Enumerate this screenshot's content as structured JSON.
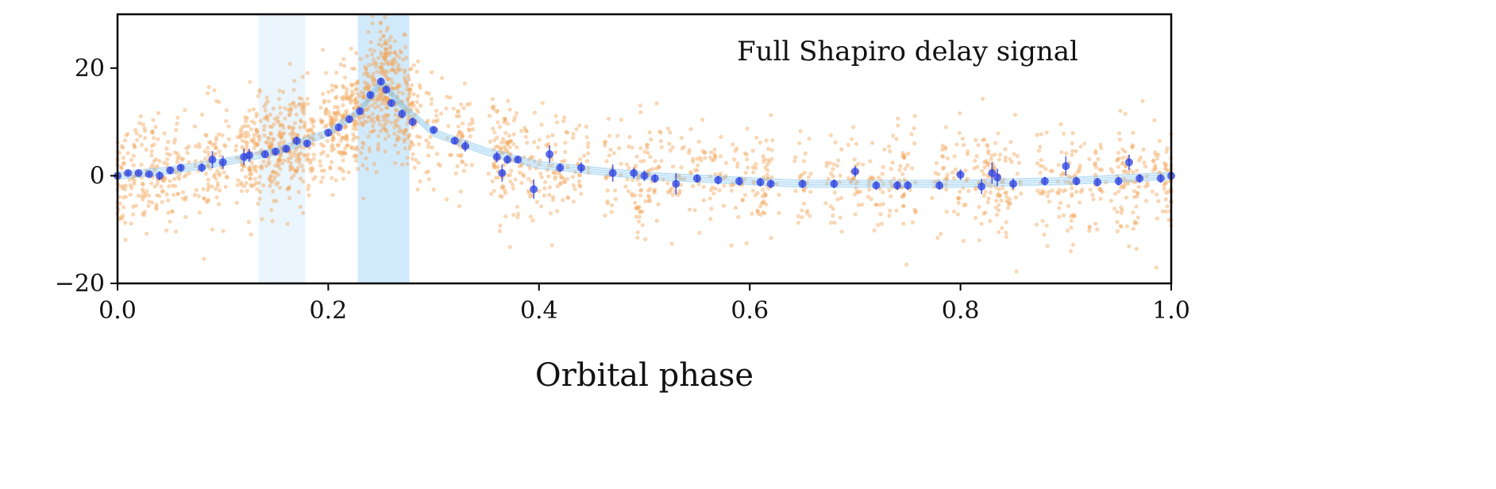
{
  "chart_data": {
    "type": "scatter",
    "xlabel": "Orbital phase",
    "ylabel": "",
    "annotation": "Full Shapiro delay signal",
    "xlim": [
      0.0,
      1.0
    ],
    "ylim": [
      -20,
      30
    ],
    "x_ticks": [
      {
        "value": 0.0,
        "label": "0.0"
      },
      {
        "value": 0.2,
        "label": "0.2"
      },
      {
        "value": 0.4,
        "label": "0.4"
      },
      {
        "value": 0.6,
        "label": "0.6"
      },
      {
        "value": 0.8,
        "label": "0.8"
      },
      {
        "value": 1.0,
        "label": "1.0"
      }
    ],
    "y_ticks": [
      {
        "value": -20,
        "label": "−20"
      },
      {
        "value": 0,
        "label": "0"
      },
      {
        "value": 20,
        "label": "20"
      }
    ],
    "grid": false,
    "legend": "none",
    "shaded_regions": [
      {
        "x0": 0.134,
        "x1": 0.178,
        "color": "#d6ecfb",
        "opacity": 0.5
      },
      {
        "x0": 0.228,
        "x1": 0.277,
        "color": "#b3dcf8",
        "opacity": 0.6
      }
    ],
    "colors": {
      "raw_points": "#f2a65a",
      "binned_points": "#2b3fe0",
      "model_band": "#8cc8ee",
      "shaded": "#b3dcf8"
    },
    "model_curve": {
      "x": [
        0.0,
        0.05,
        0.1,
        0.15,
        0.2,
        0.23,
        0.25,
        0.27,
        0.3,
        0.35,
        0.4,
        0.45,
        0.5,
        0.55,
        0.6,
        0.65,
        0.7,
        0.75,
        0.8,
        0.85,
        0.9,
        0.95,
        1.0
      ],
      "y": [
        0.0,
        1.0,
        2.5,
        4.5,
        8.0,
        12.0,
        17.5,
        13.0,
        8.0,
        4.5,
        2.0,
        1.0,
        0.0,
        -0.5,
        -1.0,
        -1.5,
        -1.5,
        -1.5,
        -1.5,
        -1.2,
        -1.0,
        -0.5,
        0.0
      ]
    },
    "series": [
      {
        "name": "binned",
        "x": [
          0.0,
          0.01,
          0.02,
          0.03,
          0.04,
          0.05,
          0.06,
          0.08,
          0.09,
          0.1,
          0.12,
          0.125,
          0.14,
          0.15,
          0.16,
          0.17,
          0.18,
          0.2,
          0.21,
          0.22,
          0.23,
          0.24,
          0.25,
          0.255,
          0.26,
          0.27,
          0.28,
          0.3,
          0.32,
          0.33,
          0.36,
          0.365,
          0.37,
          0.38,
          0.395,
          0.41,
          0.42,
          0.44,
          0.47,
          0.49,
          0.5,
          0.51,
          0.53,
          0.55,
          0.57,
          0.59,
          0.61,
          0.62,
          0.65,
          0.68,
          0.7,
          0.72,
          0.74,
          0.75,
          0.78,
          0.8,
          0.82,
          0.83,
          0.835,
          0.85,
          0.88,
          0.9,
          0.91,
          0.93,
          0.95,
          0.96,
          0.97,
          0.99,
          1.0
        ],
        "y": [
          0.0,
          0.5,
          0.5,
          0.3,
          0.0,
          1.0,
          1.5,
          1.5,
          3.0,
          2.5,
          3.5,
          3.8,
          4.0,
          4.5,
          5.0,
          6.5,
          6.0,
          8.0,
          9.0,
          10.5,
          12.0,
          15.0,
          17.5,
          16.0,
          13.5,
          11.5,
          10.0,
          8.5,
          6.5,
          5.5,
          3.5,
          0.5,
          3.0,
          3.0,
          -2.5,
          4.0,
          1.5,
          1.5,
          0.5,
          0.5,
          0.0,
          -0.5,
          -1.5,
          -0.5,
          -0.8,
          -1.0,
          -1.2,
          -1.5,
          -1.5,
          -1.5,
          0.8,
          -1.8,
          -1.8,
          -1.8,
          -1.8,
          0.2,
          -2.0,
          0.5,
          -0.3,
          -1.5,
          -1.0,
          1.8,
          -1.0,
          -1.2,
          -1.0,
          2.5,
          -0.5,
          -0.5,
          0.0
        ],
        "yerr": [
          0.5,
          0.4,
          0.4,
          0.4,
          0.8,
          0.6,
          0.6,
          0.8,
          1.6,
          1.2,
          1.5,
          1.2,
          0.6,
          0.6,
          0.6,
          0.8,
          0.6,
          0.6,
          0.6,
          0.6,
          0.6,
          0.6,
          0.6,
          0.6,
          0.6,
          0.8,
          0.8,
          0.6,
          0.6,
          1.0,
          1.0,
          1.6,
          0.8,
          0.6,
          1.8,
          1.6,
          0.8,
          1.0,
          1.6,
          1.0,
          1.0,
          0.8,
          2.0,
          0.8,
          0.8,
          0.8,
          0.8,
          0.8,
          0.8,
          0.8,
          1.0,
          0.8,
          0.8,
          0.8,
          0.8,
          1.0,
          1.4,
          2.0,
          1.6,
          1.0,
          0.8,
          1.8,
          0.8,
          0.8,
          0.8,
          1.4,
          0.8,
          0.8,
          0.6
        ]
      }
    ]
  }
}
